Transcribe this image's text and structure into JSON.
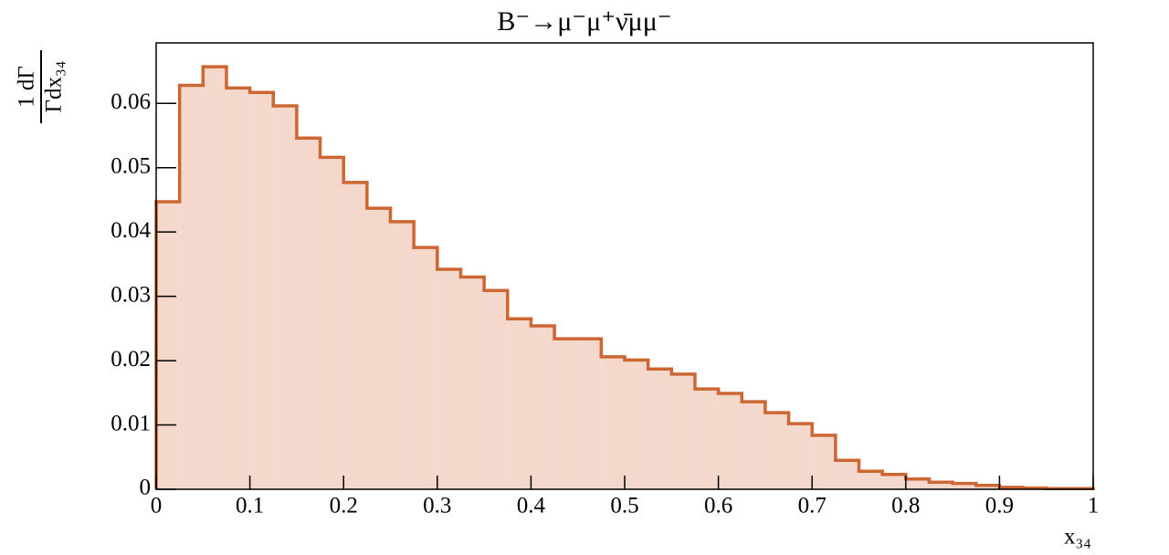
{
  "chart_data": {
    "type": "histogram",
    "title": "B⁻→μ⁻μ⁺ν̄μμ⁻",
    "x_label": "x₃₄",
    "y_label": {
      "numerator": "1 dΓ",
      "denominator": "Γdx₃₄"
    },
    "bins": [
      0,
      0.025,
      0.05,
      0.075,
      0.1,
      0.125,
      0.15,
      0.175,
      0.2,
      0.225,
      0.25,
      0.275,
      0.3,
      0.325,
      0.35,
      0.375,
      0.4,
      0.425,
      0.45,
      0.475,
      0.5,
      0.525,
      0.55,
      0.575,
      0.6,
      0.625,
      0.65,
      0.675,
      0.7,
      0.725,
      0.75,
      0.775,
      0.8,
      0.825,
      0.85,
      0.875,
      0.9,
      0.925,
      0.95,
      0.975,
      1
    ],
    "counts": [
      0.0447,
      0.0628,
      0.0657,
      0.0624,
      0.0617,
      0.0596,
      0.0546,
      0.0516,
      0.0477,
      0.0437,
      0.0416,
      0.0376,
      0.0342,
      0.033,
      0.0309,
      0.0265,
      0.0254,
      0.0234,
      0.0234,
      0.0206,
      0.0201,
      0.0187,
      0.0179,
      0.0156,
      0.0149,
      0.0136,
      0.0119,
      0.0102,
      0.0084,
      0.0045,
      0.0028,
      0.0023,
      0.0016,
      0.0011,
      0.0009,
      0.0006,
      0.0003,
      0.0002,
      0.0001,
      0.0001
    ],
    "fill_color": "#f4d8cc",
    "line_color": "#cc6633",
    "xlim": [
      0,
      1
    ],
    "xticks": [
      0,
      0.1,
      0.2,
      0.3,
      0.4,
      0.5,
      0.6,
      0.7,
      0.8,
      0.9,
      1
    ],
    "ylim": [
      0,
      0.0694
    ],
    "yticks": [
      0,
      0.01,
      0.02,
      0.03,
      0.04,
      0.05,
      0.06
    ]
  }
}
